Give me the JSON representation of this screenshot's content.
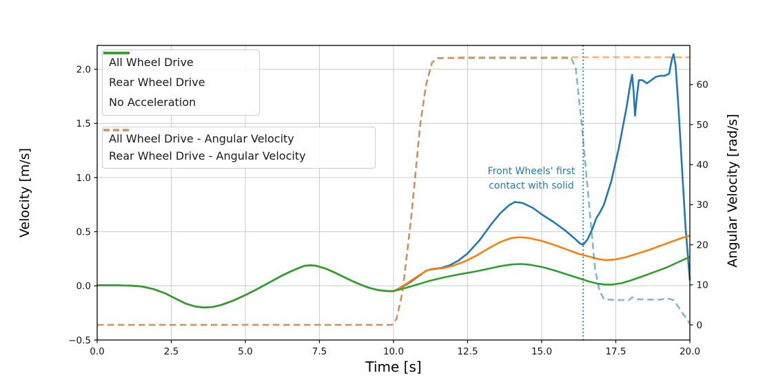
{
  "chart_data": {
    "type": "line",
    "xlabel": "Time [s]",
    "ylabel_left": "Velocity [m/s]",
    "ylabel_right": "Angular Velocity [rad/s]",
    "xlim": [
      0,
      20
    ],
    "ylim_left": [
      -0.5,
      2.22
    ],
    "ylim_right": [
      -3.78,
      69.76
    ],
    "grid": true,
    "xticks": {
      "values": [
        0,
        2.5,
        5,
        7.5,
        10,
        12.5,
        15,
        17.5,
        20
      ],
      "labels": [
        "0.0",
        "2.5",
        "5.0",
        "7.5",
        "10.0",
        "12.5",
        "15.0",
        "17.5",
        "20.0"
      ]
    },
    "yticks_left": {
      "values": [
        -0.5,
        0,
        0.5,
        1,
        1.5,
        2
      ],
      "labels": [
        "−0.5",
        "0.0",
        "0.5",
        "1.0",
        "1.5",
        "2.0"
      ]
    },
    "yticks_right": {
      "values": [
        0,
        10,
        20,
        30,
        40,
        50,
        60
      ],
      "labels": [
        "0",
        "10",
        "20",
        "30",
        "40",
        "50",
        "60"
      ]
    },
    "vline": {
      "x": 16.4,
      "color": "#1f77b4",
      "style": "dotted"
    },
    "annotation": {
      "lines": [
        "Front Wheels' first",
        "contact with solid"
      ],
      "color": "#2878b4",
      "x": 14.65
    },
    "colors": {
      "awd": "#1f77b4",
      "rwd": "#ff7f0e",
      "noacc": "#2ca02c",
      "awd_angular": "rgba(31,119,180,0.55)",
      "rwd_angular": "rgba(255,127,14,0.6)",
      "grid": "#cccccc",
      "spine": "#000000"
    },
    "legends": [
      {
        "entries": [
          {
            "label": "All Wheel Drive",
            "color": "#1f77b4",
            "style": "solid"
          },
          {
            "label": "Rear Wheel Drive",
            "color": "#ff7f0e",
            "style": "solid"
          },
          {
            "label": "No Acceleration",
            "color": "#2ca02c",
            "style": "solid"
          }
        ]
      },
      {
        "entries": [
          {
            "label": "All Wheel Drive - Angular Velocity",
            "color": "rgba(31,119,180,0.55)",
            "style": "dashed"
          },
          {
            "label": "Rear Wheel Drive - Angular Velocity",
            "color": "rgba(255,127,14,0.6)",
            "style": "dashed"
          }
        ]
      }
    ],
    "series": [
      {
        "name": "All Wheel Drive",
        "axis": "left",
        "color": "#1f77b4",
        "style": "solid",
        "points": [
          [
            0,
            0.005
          ],
          [
            0.6,
            0.005
          ],
          [
            1.1,
            0.003
          ],
          [
            1.5,
            -0.005
          ],
          [
            1.9,
            -0.03
          ],
          [
            2.3,
            -0.07
          ],
          [
            2.7,
            -0.125
          ],
          [
            3.0,
            -0.165
          ],
          [
            3.3,
            -0.19
          ],
          [
            3.6,
            -0.2
          ],
          [
            3.9,
            -0.195
          ],
          [
            4.2,
            -0.175
          ],
          [
            4.6,
            -0.135
          ],
          [
            5.0,
            -0.085
          ],
          [
            5.4,
            -0.03
          ],
          [
            5.8,
            0.03
          ],
          [
            6.2,
            0.09
          ],
          [
            6.5,
            0.13
          ],
          [
            6.8,
            0.165
          ],
          [
            7.0,
            0.185
          ],
          [
            7.2,
            0.19
          ],
          [
            7.4,
            0.185
          ],
          [
            7.7,
            0.16
          ],
          [
            8.0,
            0.125
          ],
          [
            8.3,
            0.085
          ],
          [
            8.6,
            0.045
          ],
          [
            8.9,
            0.01
          ],
          [
            9.2,
            -0.02
          ],
          [
            9.5,
            -0.04
          ],
          [
            9.8,
            -0.048
          ],
          [
            10.0,
            -0.05
          ],
          [
            10.3,
            -0.01
          ],
          [
            10.6,
            0.04
          ],
          [
            10.9,
            0.1
          ],
          [
            11.1,
            0.14
          ],
          [
            11.3,
            0.155
          ],
          [
            11.6,
            0.165
          ],
          [
            11.9,
            0.19
          ],
          [
            12.2,
            0.235
          ],
          [
            12.5,
            0.3
          ],
          [
            12.9,
            0.42
          ],
          [
            13.3,
            0.57
          ],
          [
            13.6,
            0.67
          ],
          [
            13.9,
            0.745
          ],
          [
            14.1,
            0.775
          ],
          [
            14.35,
            0.765
          ],
          [
            14.7,
            0.72
          ],
          [
            15.0,
            0.66
          ],
          [
            15.4,
            0.59
          ],
          [
            15.8,
            0.51
          ],
          [
            16.1,
            0.44
          ],
          [
            16.3,
            0.39
          ],
          [
            16.4,
            0.38
          ],
          [
            16.55,
            0.43
          ],
          [
            16.7,
            0.52
          ],
          [
            16.85,
            0.63
          ],
          [
            16.95,
            0.67
          ],
          [
            17.1,
            0.75
          ],
          [
            17.35,
            0.97
          ],
          [
            17.6,
            1.27
          ],
          [
            17.85,
            1.63
          ],
          [
            18.0,
            1.88
          ],
          [
            18.05,
            1.95
          ],
          [
            18.1,
            1.8
          ],
          [
            18.15,
            1.57
          ],
          [
            18.2,
            1.72
          ],
          [
            18.28,
            1.9
          ],
          [
            18.4,
            1.9
          ],
          [
            18.55,
            1.87
          ],
          [
            18.7,
            1.9
          ],
          [
            18.85,
            1.93
          ],
          [
            19.0,
            1.94
          ],
          [
            19.15,
            1.94
          ],
          [
            19.3,
            1.96
          ],
          [
            19.4,
            2.1
          ],
          [
            19.45,
            2.14
          ],
          [
            19.52,
            2.03
          ],
          [
            19.62,
            1.62
          ],
          [
            19.72,
            1.15
          ],
          [
            19.85,
            0.55
          ],
          [
            20,
            0.05
          ]
        ]
      },
      {
        "name": "Rear Wheel Drive",
        "axis": "left",
        "color": "#ff7f0e",
        "style": "solid",
        "points": [
          [
            0,
            0.005
          ],
          [
            0.6,
            0.005
          ],
          [
            1.1,
            0.003
          ],
          [
            1.5,
            -0.005
          ],
          [
            1.9,
            -0.03
          ],
          [
            2.3,
            -0.07
          ],
          [
            2.7,
            -0.125
          ],
          [
            3.0,
            -0.165
          ],
          [
            3.3,
            -0.19
          ],
          [
            3.6,
            -0.2
          ],
          [
            3.9,
            -0.195
          ],
          [
            4.2,
            -0.175
          ],
          [
            4.6,
            -0.135
          ],
          [
            5.0,
            -0.085
          ],
          [
            5.4,
            -0.03
          ],
          [
            5.8,
            0.03
          ],
          [
            6.2,
            0.09
          ],
          [
            6.5,
            0.13
          ],
          [
            6.8,
            0.165
          ],
          [
            7.0,
            0.185
          ],
          [
            7.2,
            0.19
          ],
          [
            7.4,
            0.185
          ],
          [
            7.7,
            0.16
          ],
          [
            8.0,
            0.125
          ],
          [
            8.3,
            0.085
          ],
          [
            8.6,
            0.045
          ],
          [
            8.9,
            0.01
          ],
          [
            9.2,
            -0.02
          ],
          [
            9.5,
            -0.04
          ],
          [
            9.8,
            -0.048
          ],
          [
            10.0,
            -0.05
          ],
          [
            10.3,
            -0.005
          ],
          [
            10.6,
            0.05
          ],
          [
            10.9,
            0.105
          ],
          [
            11.15,
            0.145
          ],
          [
            11.4,
            0.155
          ],
          [
            11.7,
            0.165
          ],
          [
            12.0,
            0.185
          ],
          [
            12.4,
            0.225
          ],
          [
            12.8,
            0.28
          ],
          [
            13.2,
            0.345
          ],
          [
            13.6,
            0.405
          ],
          [
            13.95,
            0.44
          ],
          [
            14.25,
            0.45
          ],
          [
            14.6,
            0.44
          ],
          [
            15.0,
            0.415
          ],
          [
            15.4,
            0.38
          ],
          [
            15.8,
            0.34
          ],
          [
            16.2,
            0.3
          ],
          [
            16.6,
            0.27
          ],
          [
            16.9,
            0.248
          ],
          [
            17.15,
            0.238
          ],
          [
            17.45,
            0.242
          ],
          [
            17.8,
            0.262
          ],
          [
            18.2,
            0.295
          ],
          [
            18.6,
            0.33
          ],
          [
            19.0,
            0.37
          ],
          [
            19.4,
            0.41
          ],
          [
            19.7,
            0.44
          ],
          [
            20,
            0.465
          ]
        ]
      },
      {
        "name": "No Acceleration",
        "axis": "left",
        "color": "#2ca02c",
        "style": "solid",
        "points": [
          [
            0,
            0.005
          ],
          [
            0.6,
            0.005
          ],
          [
            1.1,
            0.003
          ],
          [
            1.5,
            -0.005
          ],
          [
            1.9,
            -0.03
          ],
          [
            2.3,
            -0.07
          ],
          [
            2.7,
            -0.125
          ],
          [
            3.0,
            -0.165
          ],
          [
            3.3,
            -0.19
          ],
          [
            3.6,
            -0.2
          ],
          [
            3.9,
            -0.195
          ],
          [
            4.2,
            -0.175
          ],
          [
            4.6,
            -0.135
          ],
          [
            5.0,
            -0.085
          ],
          [
            5.4,
            -0.03
          ],
          [
            5.8,
            0.03
          ],
          [
            6.2,
            0.09
          ],
          [
            6.5,
            0.13
          ],
          [
            6.8,
            0.165
          ],
          [
            7.0,
            0.185
          ],
          [
            7.2,
            0.19
          ],
          [
            7.4,
            0.185
          ],
          [
            7.7,
            0.16
          ],
          [
            8.0,
            0.125
          ],
          [
            8.3,
            0.085
          ],
          [
            8.6,
            0.045
          ],
          [
            8.9,
            0.01
          ],
          [
            9.2,
            -0.02
          ],
          [
            9.5,
            -0.04
          ],
          [
            9.8,
            -0.048
          ],
          [
            10.0,
            -0.048
          ],
          [
            10.4,
            -0.02
          ],
          [
            10.8,
            0.012
          ],
          [
            11.2,
            0.045
          ],
          [
            11.6,
            0.072
          ],
          [
            12.0,
            0.095
          ],
          [
            12.4,
            0.115
          ],
          [
            12.8,
            0.135
          ],
          [
            13.2,
            0.158
          ],
          [
            13.6,
            0.182
          ],
          [
            14.0,
            0.198
          ],
          [
            14.3,
            0.202
          ],
          [
            14.6,
            0.195
          ],
          [
            15.0,
            0.175
          ],
          [
            15.4,
            0.145
          ],
          [
            15.8,
            0.11
          ],
          [
            16.2,
            0.075
          ],
          [
            16.6,
            0.04
          ],
          [
            16.9,
            0.02
          ],
          [
            17.15,
            0.012
          ],
          [
            17.4,
            0.012
          ],
          [
            17.7,
            0.025
          ],
          [
            18.0,
            0.05
          ],
          [
            18.4,
            0.088
          ],
          [
            18.8,
            0.128
          ],
          [
            19.2,
            0.168
          ],
          [
            19.6,
            0.218
          ],
          [
            20,
            0.268
          ]
        ]
      },
      {
        "name": "All Wheel Drive - Angular Velocity",
        "axis": "right",
        "color": "rgba(31,119,180,0.55)",
        "style": "dashed",
        "points": [
          [
            0,
            0
          ],
          [
            3,
            0
          ],
          [
            6,
            0
          ],
          [
            9.95,
            0
          ],
          [
            10.1,
            1.5
          ],
          [
            10.3,
            8
          ],
          [
            10.6,
            27
          ],
          [
            10.9,
            50
          ],
          [
            11.1,
            60
          ],
          [
            11.3,
            65.5
          ],
          [
            11.5,
            66.6
          ],
          [
            12.5,
            66.6
          ],
          [
            14,
            66.6
          ],
          [
            15.5,
            66.6
          ],
          [
            16.0,
            66.6
          ],
          [
            16.15,
            64
          ],
          [
            16.35,
            50
          ],
          [
            16.6,
            30
          ],
          [
            16.8,
            14
          ],
          [
            16.95,
            8.5
          ],
          [
            17.1,
            6.4
          ],
          [
            17.5,
            6.2
          ],
          [
            17.95,
            6.2
          ],
          [
            18.05,
            6.9
          ],
          [
            18.2,
            6.4
          ],
          [
            18.6,
            6.3
          ],
          [
            19.0,
            6.3
          ],
          [
            19.25,
            6.6
          ],
          [
            19.45,
            6.2
          ],
          [
            19.6,
            4.6
          ],
          [
            19.8,
            2.4
          ],
          [
            20,
            0.3
          ]
        ]
      },
      {
        "name": "Rear Wheel Drive - Angular Velocity",
        "axis": "right",
        "color": "rgba(255,127,14,0.6)",
        "style": "dashed",
        "points": [
          [
            0,
            0
          ],
          [
            3,
            0
          ],
          [
            6,
            0
          ],
          [
            9.95,
            0
          ],
          [
            10.1,
            1.5
          ],
          [
            10.3,
            8
          ],
          [
            10.6,
            27
          ],
          [
            10.9,
            50
          ],
          [
            11.1,
            60
          ],
          [
            11.3,
            65.5
          ],
          [
            11.5,
            66.6
          ],
          [
            12.5,
            66.8
          ],
          [
            14,
            66.8
          ],
          [
            16,
            66.8
          ],
          [
            18,
            66.8
          ],
          [
            20,
            66.8
          ]
        ]
      }
    ]
  }
}
